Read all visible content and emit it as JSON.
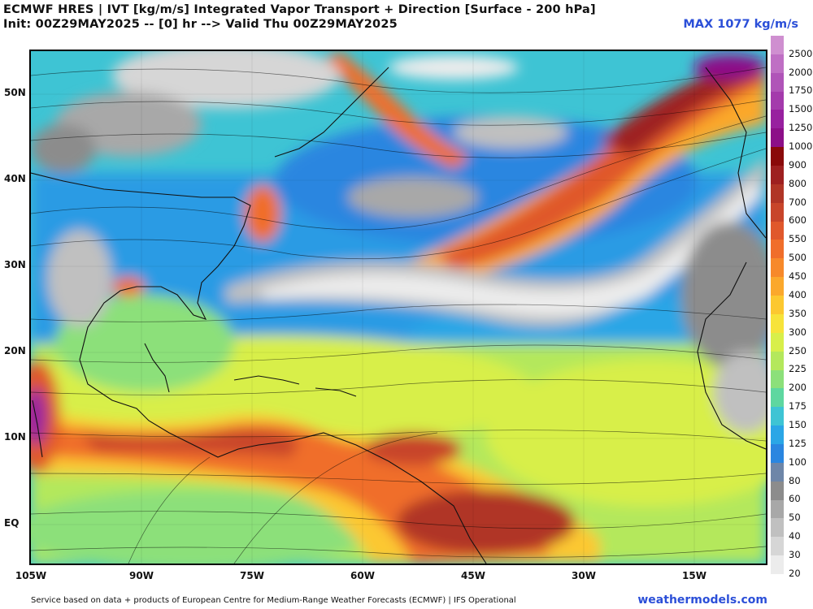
{
  "header": {
    "title": "ECMWF HRES | IVT [kg/m/s] Integrated Vapor Transport + Direction [Surface - 200 hPa]",
    "subtitle": "Init: 00Z29MAY2025 -- [0] hr --> Valid Thu 00Z29MAY2025",
    "max_label": "MAX 1077 kg/m/s"
  },
  "map": {
    "lat_labels": [
      "50N",
      "40N",
      "30N",
      "20N",
      "10N",
      "EQ"
    ],
    "lon_labels": [
      "105W",
      "90W",
      "75W",
      "60W",
      "45W",
      "30W",
      "15W"
    ]
  },
  "colorbar": {
    "levels": [
      "2500",
      "2000",
      "1750",
      "1500",
      "1250",
      "1000",
      "900",
      "800",
      "700",
      "600",
      "550",
      "500",
      "450",
      "400",
      "350",
      "300",
      "250",
      "225",
      "200",
      "175",
      "150",
      "125",
      "100",
      "80",
      "60",
      "50",
      "40",
      "30",
      "20"
    ],
    "colors": [
      "#cf8fd0",
      "#bf6fc4",
      "#b054b8",
      "#a43aac",
      "#98209f",
      "#8c0f88",
      "#8a0a0a",
      "#9e2020",
      "#b03526",
      "#c8452a",
      "#e0582c",
      "#f06e2a",
      "#f7892a",
      "#fba82c",
      "#fcc830",
      "#f7e33a",
      "#d8ef4a",
      "#b4e85c",
      "#8ce07a",
      "#5ed7a0",
      "#3ec4d4",
      "#2aa6e6",
      "#2a86e0",
      "#6e86a8",
      "#8c8c8c",
      "#a8a8a8",
      "#c0c0c0",
      "#d6d6d6",
      "#ececec"
    ]
  },
  "footer": {
    "credit": "Service based on data + products of European Centre for Medium-Range Weather Forecasts (ECMWF) | IFS Operational",
    "site": "weathermodels.com"
  }
}
